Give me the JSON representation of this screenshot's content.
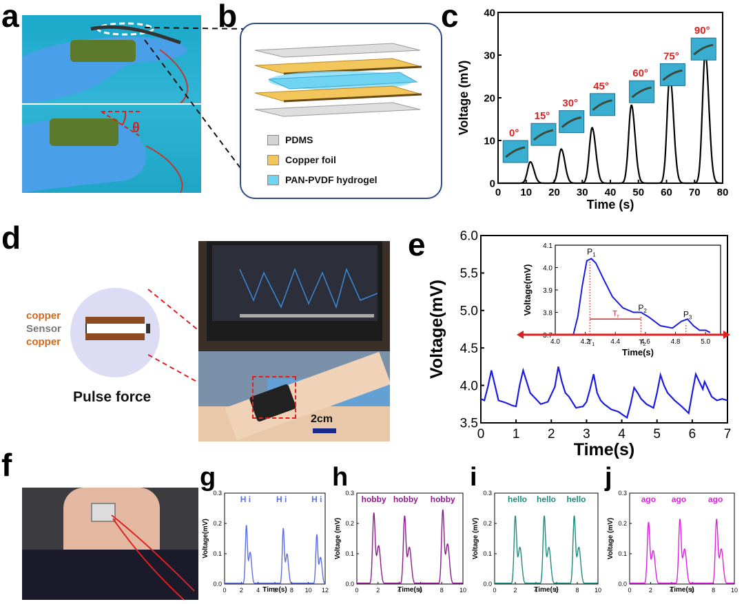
{
  "panels": {
    "a": "a",
    "b": "b",
    "c": "c",
    "d": "d",
    "e": "e",
    "f": "f",
    "g": "g",
    "h": "h",
    "i": "i",
    "j": "j"
  },
  "panel_a": {
    "angle_symbol": "θ"
  },
  "panel_b": {
    "legend": [
      {
        "label": "PDMS",
        "color": "#d4d4d4"
      },
      {
        "label": "Copper foil",
        "color": "#f2c65a"
      },
      {
        "label": "PAN-PVDF hydrogel",
        "color": "#6fd3f2"
      }
    ]
  },
  "panel_d": {
    "sensor_layers": [
      "copper",
      "Sensor",
      "copper"
    ],
    "caption": "Pulse force",
    "scale_label": "2cm"
  },
  "chart_data": [
    {
      "id": "c",
      "type": "line",
      "xlabel": "Time (s)",
      "ylabel": "Voltage (mV)",
      "xlim": [
        0,
        80
      ],
      "ylim": [
        0,
        40
      ],
      "xticks": [
        0,
        10,
        20,
        30,
        40,
        50,
        60,
        70,
        80
      ],
      "yticks": [
        0,
        10,
        20,
        30,
        40
      ],
      "peaks": [
        {
          "time": 11.5,
          "value": 5,
          "label": "0°"
        },
        {
          "time": 22.5,
          "value": 8,
          "label": "15°"
        },
        {
          "time": 33.5,
          "value": 13,
          "label": "30°"
        },
        {
          "time": 47.5,
          "value": 18.3,
          "label": "45°"
        },
        {
          "time": 61.2,
          "value": 25.3,
          "label": "60°"
        },
        {
          "time": 73.8,
          "value": 30.5,
          "label": "75°"
        }
      ],
      "extra_label": "90°"
    },
    {
      "id": "e",
      "type": "line",
      "xlabel": "Time(s)",
      "ylabel": "Voltage(mV)",
      "xlim": [
        0,
        7
      ],
      "ylim": [
        3.5,
        6.0
      ],
      "xticks": [
        0,
        1,
        2,
        3,
        4,
        5,
        6,
        7
      ],
      "yticks": [
        3.5,
        4.0,
        4.5,
        5.0,
        5.5,
        6.0
      ],
      "yticklabels": [
        "3.5",
        "4.0",
        "4.5",
        "5.0",
        "5.5",
        "6.0"
      ],
      "series": {
        "x": [
          0,
          0.1,
          0.2,
          0.3,
          0.4,
          0.5,
          0.7,
          0.9,
          1.0,
          1.1,
          1.2,
          1.3,
          1.4,
          1.5,
          1.7,
          1.9,
          2.1,
          2.2,
          2.3,
          2.4,
          2.5,
          2.7,
          2.9,
          3.0,
          3.1,
          3.2,
          3.3,
          3.4,
          3.5,
          3.7,
          3.9,
          4.05,
          4.15,
          4.25,
          4.35,
          4.45,
          4.55,
          4.7,
          4.9,
          5.0,
          5.1,
          5.2,
          5.3,
          5.4,
          5.5,
          5.7,
          5.9,
          6.0,
          6.1,
          6.2,
          6.3,
          6.35,
          6.45,
          6.55,
          6.7,
          6.85,
          7.0
        ],
        "y": [
          3.82,
          3.8,
          3.98,
          4.2,
          4.0,
          3.8,
          3.77,
          3.73,
          3.72,
          4.0,
          4.2,
          4.05,
          3.9,
          3.85,
          3.75,
          3.78,
          3.98,
          4.25,
          4.05,
          3.9,
          3.85,
          3.7,
          3.72,
          3.78,
          3.95,
          4.15,
          3.9,
          3.8,
          3.75,
          3.68,
          3.65,
          3.6,
          3.57,
          3.75,
          3.97,
          3.9,
          3.82,
          3.75,
          3.7,
          3.9,
          4.14,
          4.0,
          3.9,
          3.85,
          3.8,
          3.72,
          3.63,
          3.9,
          4.15,
          4.05,
          3.95,
          4.05,
          3.95,
          3.85,
          3.8,
          3.82,
          3.8
        ]
      },
      "inset": {
        "xlabel": "Time(s)",
        "ylabel": "Voltage(mV)",
        "xlim": [
          4.0,
          5.1
        ],
        "ylim": [
          3.7,
          4.1
        ],
        "xticks": [
          4.0,
          4.2,
          4.4,
          4.6,
          4.8,
          5.0
        ],
        "xticklabels": [
          "4.0",
          "4.2",
          "4.4",
          "4.6",
          "4.8",
          "5.0"
        ],
        "yticks": [
          3.7,
          3.8,
          3.9,
          4.0,
          4.1
        ],
        "yticklabels": [
          "3.7",
          "3.8",
          "3.9",
          "4.0",
          "4.1"
        ],
        "series": {
          "x": [
            4.12,
            4.15,
            4.18,
            4.21,
            4.24,
            4.27,
            4.32,
            4.38,
            4.45,
            4.52,
            4.57,
            4.62,
            4.7,
            4.78,
            4.84,
            4.88,
            4.92,
            4.96,
            5.0,
            5.03
          ],
          "y": [
            3.7,
            3.78,
            3.92,
            4.03,
            4.04,
            4.02,
            3.95,
            3.87,
            3.82,
            3.8,
            3.8,
            3.78,
            3.74,
            3.73,
            3.76,
            3.77,
            3.74,
            3.72,
            3.72,
            3.71
          ]
        },
        "points": [
          {
            "label": "P",
            "sub": "1",
            "x": 4.23,
            "y": 4.04
          },
          {
            "label": "P",
            "sub": "2",
            "x": 4.57,
            "y": 3.79
          },
          {
            "label": "P",
            "sub": "3",
            "x": 4.87,
            "y": 3.76
          }
        ],
        "markers": [
          {
            "label": "T",
            "sub": "1",
            "x": 4.23
          },
          {
            "label": "T",
            "sub": "2",
            "x": 4.57
          }
        ],
        "interval_label": "T",
        "interval_sub": "r"
      }
    },
    {
      "id": "g",
      "type": "line",
      "color": "#5b6fe0",
      "word": "H i",
      "xlabel": "Time(s)",
      "ylabel": "Voltage(mV)",
      "xlim": [
        0,
        12
      ],
      "ylim": [
        0,
        0.3
      ],
      "xticks": [
        0,
        2,
        4,
        6,
        8,
        10,
        12
      ],
      "yticks": [
        0.0,
        0.1,
        0.2,
        0.3
      ],
      "yticklabels": [
        "0.0",
        "0.1",
        "0.2",
        "0.3"
      ],
      "word_times": [
        2.5,
        6.8,
        11.0
      ],
      "peaks": [
        [
          2.6,
          0.19
        ],
        [
          7.0,
          0.18
        ],
        [
          11.0,
          0.16
        ]
      ]
    },
    {
      "id": "h",
      "type": "line",
      "color": "#8b1a8b",
      "word": "hobby",
      "xlabel": "Time(s)",
      "ylabel": "Voltage (mV)",
      "xlim": [
        0,
        10
      ],
      "ylim": [
        0,
        0.3
      ],
      "xticks": [
        0,
        2,
        4,
        6,
        8,
        10
      ],
      "yticks": [
        0.0,
        0.1,
        0.2,
        0.3
      ],
      "yticklabels": [
        "0.0",
        "0.1",
        "0.2",
        "0.3"
      ],
      "word_times": [
        1.6,
        4.6,
        8.1
      ],
      "peaks": [
        [
          1.6,
          0.23
        ],
        [
          4.5,
          0.22
        ],
        [
          8.1,
          0.24
        ]
      ]
    },
    {
      "id": "i",
      "type": "line",
      "color": "#1e8a7a",
      "word": "hello",
      "xlabel": "Time(s)",
      "ylabel": "Voltage (mV)",
      "xlim": [
        0,
        10
      ],
      "ylim": [
        0,
        0.3
      ],
      "xticks": [
        0,
        2,
        4,
        6,
        8,
        10
      ],
      "yticks": [
        0.0,
        0.1,
        0.2,
        0.3
      ],
      "yticklabels": [
        "0.0",
        "0.1",
        "0.2",
        "0.3"
      ],
      "word_times": [
        2.2,
        5.0,
        7.9
      ],
      "peaks": [
        [
          2.0,
          0.22
        ],
        [
          4.8,
          0.22
        ],
        [
          7.7,
          0.22
        ]
      ]
    },
    {
      "id": "j",
      "type": "line",
      "color": "#e020e0",
      "word": "ago",
      "xlabel": "Time(s)",
      "ylabel": "Voltage (mV)",
      "xlim": [
        0,
        10
      ],
      "ylim": [
        0,
        0.3
      ],
      "xticks": [
        0,
        2,
        4,
        6,
        8,
        10
      ],
      "yticks": [
        0.0,
        0.1,
        0.2,
        0.3
      ],
      "yticklabels": [
        "0.0",
        "0.1",
        "0.2",
        "0.3"
      ],
      "word_times": [
        1.8,
        4.7,
        8.2
      ],
      "peaks": [
        [
          1.8,
          0.2
        ],
        [
          4.8,
          0.21
        ],
        [
          8.3,
          0.21
        ]
      ]
    }
  ]
}
